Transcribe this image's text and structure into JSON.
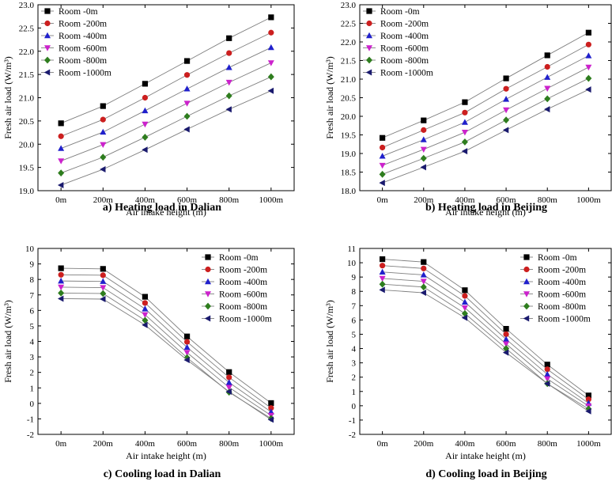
{
  "chart_data": [
    {
      "type": "line",
      "caption": "a)  Heating load in Dalian",
      "xlabel": "Air intake height (m)",
      "ylabel": "Fresh air load (W/m³)",
      "categories": [
        "0m",
        "200m",
        "400m",
        "600m",
        "800m",
        "1000m"
      ],
      "ylim": [
        19.0,
        23.0
      ],
      "yticks": [
        "19.0",
        "19.5",
        "20.0",
        "20.5",
        "21.0",
        "21.5",
        "22.0",
        "22.5",
        "23.0"
      ],
      "legend_position": "top-left",
      "series": [
        {
          "name": "Room -0m",
          "values": [
            20.45,
            20.82,
            21.3,
            21.79,
            22.28,
            22.73
          ]
        },
        {
          "name": "Room -200m",
          "values": [
            20.17,
            20.53,
            21.0,
            21.49,
            21.96,
            22.4
          ]
        },
        {
          "name": "Room -400m",
          "values": [
            19.91,
            20.26,
            20.72,
            21.19,
            21.65,
            22.08
          ]
        },
        {
          "name": "Room -600m",
          "values": [
            19.64,
            19.99,
            20.43,
            20.88,
            21.33,
            21.75
          ]
        },
        {
          "name": "Room -800m",
          "values": [
            19.38,
            19.72,
            20.15,
            20.6,
            21.04,
            21.45
          ]
        },
        {
          "name": "Room -1000m",
          "values": [
            19.12,
            19.46,
            19.88,
            20.32,
            20.75,
            21.15
          ]
        }
      ]
    },
    {
      "type": "line",
      "caption": "b)  Heating load in Beijing",
      "xlabel": "Air intake height (m)",
      "ylabel": "Fresh air load (W/m³)",
      "categories": [
        "0m",
        "200m",
        "400m",
        "600m",
        "800m",
        "1000m"
      ],
      "ylim": [
        18.0,
        23.0
      ],
      "yticks": [
        "18.0",
        "18.5",
        "19.0",
        "19.5",
        "20.0",
        "20.5",
        "21.0",
        "21.5",
        "22.0",
        "22.5",
        "23.0"
      ],
      "legend_position": "top-left",
      "series": [
        {
          "name": "Room -0m",
          "values": [
            19.42,
            19.89,
            20.38,
            21.02,
            21.64,
            22.25
          ]
        },
        {
          "name": "Room -200m",
          "values": [
            19.16,
            19.63,
            20.1,
            20.74,
            21.33,
            21.93
          ]
        },
        {
          "name": "Room -400m",
          "values": [
            18.93,
            19.37,
            19.84,
            20.46,
            21.05,
            21.63
          ]
        },
        {
          "name": "Room -600m",
          "values": [
            18.68,
            19.11,
            19.57,
            20.17,
            20.75,
            21.32
          ]
        },
        {
          "name": "Room -800m",
          "values": [
            18.44,
            18.87,
            19.31,
            19.9,
            20.47,
            21.02
          ]
        },
        {
          "name": "Room -1000m",
          "values": [
            18.21,
            18.63,
            19.06,
            19.63,
            20.19,
            20.72
          ]
        }
      ]
    },
    {
      "type": "line",
      "caption": "c)  Cooling load in Dalian",
      "xlabel": "Air intake height (m)",
      "ylabel": "Fresh air load (W/m³)",
      "categories": [
        "0m",
        "200m",
        "400m",
        "600m",
        "800m",
        "1000m"
      ],
      "ylim": [
        -2,
        10
      ],
      "yticks": [
        "-2",
        "-1",
        "0",
        "1",
        "2",
        "3",
        "4",
        "5",
        "6",
        "7",
        "8",
        "9",
        "10"
      ],
      "legend_position": "top-right",
      "series": [
        {
          "name": "Room -0m",
          "values": [
            8.72,
            8.68,
            6.88,
            4.32,
            2.02,
            0.02
          ]
        },
        {
          "name": "Room -200m",
          "values": [
            8.3,
            8.27,
            6.48,
            3.97,
            1.68,
            -0.3
          ]
        },
        {
          "name": "Room -400m",
          "values": [
            7.9,
            7.87,
            6.1,
            3.62,
            1.35,
            -0.55
          ]
        },
        {
          "name": "Room -600m",
          "values": [
            7.5,
            7.47,
            5.72,
            3.28,
            1.03,
            -0.78
          ]
        },
        {
          "name": "Room -800m",
          "values": [
            7.12,
            7.09,
            5.36,
            2.95,
            0.72,
            -0.97
          ]
        },
        {
          "name": "Room -1000m",
          "values": [
            6.76,
            6.73,
            5.06,
            2.8,
            0.76,
            -1.05
          ]
        }
      ]
    },
    {
      "type": "line",
      "caption": "d)  Cooling load in Beijing",
      "xlabel": "Air intake height (m)",
      "ylabel": "Fresh air load (W/m³)",
      "categories": [
        "0m",
        "200m",
        "400m",
        "600m",
        "800m",
        "1000m"
      ],
      "ylim": [
        -2,
        11
      ],
      "yticks": [
        "-2",
        "-1",
        "0",
        "1",
        "2",
        "3",
        "4",
        "5",
        "6",
        "7",
        "8",
        "9",
        "10",
        "11"
      ],
      "legend_position": "top-right",
      "series": [
        {
          "name": "Room -0m",
          "values": [
            10.25,
            10.05,
            8.08,
            5.38,
            2.88,
            0.72
          ]
        },
        {
          "name": "Room -200m",
          "values": [
            9.8,
            9.6,
            7.68,
            5.0,
            2.55,
            0.45
          ]
        },
        {
          "name": "Room -400m",
          "values": [
            9.35,
            9.15,
            7.25,
            4.65,
            2.2,
            0.18
          ]
        },
        {
          "name": "Room -600m",
          "values": [
            8.9,
            8.7,
            6.85,
            4.32,
            1.88,
            -0.02
          ]
        },
        {
          "name": "Room -800m",
          "values": [
            8.5,
            8.3,
            6.45,
            4.0,
            1.55,
            -0.22
          ]
        },
        {
          "name": "Room -1000m",
          "values": [
            8.1,
            7.9,
            6.15,
            3.72,
            1.55,
            -0.38
          ]
        }
      ]
    }
  ],
  "style": {
    "series_colors": [
      "#000000",
      "#cc1f1f",
      "#2020cc",
      "#cc22cc",
      "#2e7d1e",
      "#1a1a6e"
    ],
    "line_color": "#7f7f7f",
    "marker_shapes": [
      "square",
      "circle",
      "triangle-up",
      "triangle-down",
      "diamond",
      "triangle-left"
    ]
  }
}
